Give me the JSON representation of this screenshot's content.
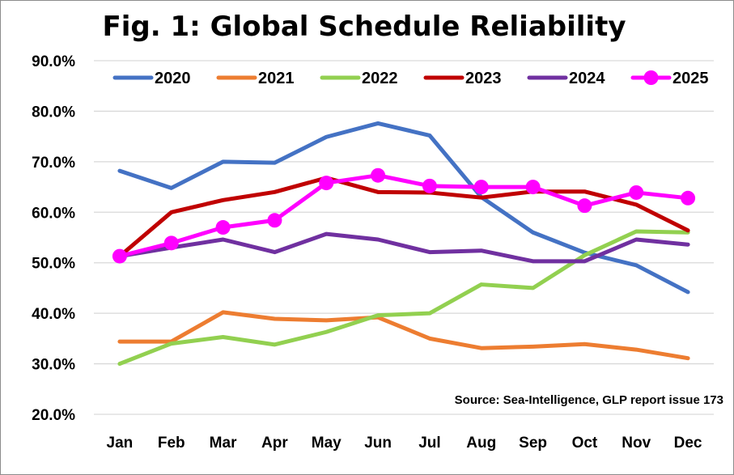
{
  "chart_data": {
    "type": "line",
    "title": "Fig. 1: Global Schedule Reliability",
    "source": "Source: Sea-Intelligence, GLP report issue 173",
    "categories": [
      "Jan",
      "Feb",
      "Mar",
      "Apr",
      "May",
      "Jun",
      "Jul",
      "Aug",
      "Sep",
      "Oct",
      "Nov",
      "Dec"
    ],
    "ylim": [
      20,
      90
    ],
    "yticks": [
      20,
      30,
      40,
      50,
      60,
      70,
      80,
      90
    ],
    "ytick_labels": [
      "20.0%",
      "30.0%",
      "40.0%",
      "50.0%",
      "60.0%",
      "70.0%",
      "80.0%",
      "90.0%"
    ],
    "grid": true,
    "legend_position": "top",
    "series": [
      {
        "name": "2020",
        "color": "#4472c4",
        "markers": false,
        "values": [
          68.2,
          64.8,
          70.0,
          69.8,
          74.9,
          77.6,
          75.2,
          63.0,
          56.0,
          52.0,
          49.5,
          44.2
        ]
      },
      {
        "name": "2021",
        "color": "#ed7d31",
        "markers": false,
        "values": [
          34.4,
          34.4,
          40.2,
          38.9,
          38.6,
          39.2,
          35.0,
          33.1,
          33.4,
          33.9,
          32.8,
          31.1
        ]
      },
      {
        "name": "2022",
        "color": "#92d050",
        "markers": false,
        "values": [
          30.0,
          34.0,
          35.3,
          33.8,
          36.3,
          39.6,
          40.0,
          45.7,
          45.0,
          51.5,
          56.2,
          56.0
        ]
      },
      {
        "name": "2023",
        "color": "#c00000",
        "markers": false,
        "values": [
          51.3,
          60.0,
          62.4,
          64.0,
          66.8,
          64.0,
          63.9,
          62.9,
          64.1,
          64.1,
          61.5,
          56.4
        ]
      },
      {
        "name": "2024",
        "color": "#7030a0",
        "markers": false,
        "values": [
          51.3,
          53.0,
          54.6,
          52.1,
          55.7,
          54.6,
          52.1,
          52.4,
          50.3,
          50.3,
          54.6,
          53.6
        ]
      },
      {
        "name": "2025",
        "color": "#ff00ff",
        "markers": true,
        "values": [
          51.3,
          53.9,
          57.0,
          58.4,
          65.8,
          67.3,
          65.2,
          65.0,
          65.0,
          61.3,
          63.9,
          62.8
        ]
      }
    ]
  }
}
